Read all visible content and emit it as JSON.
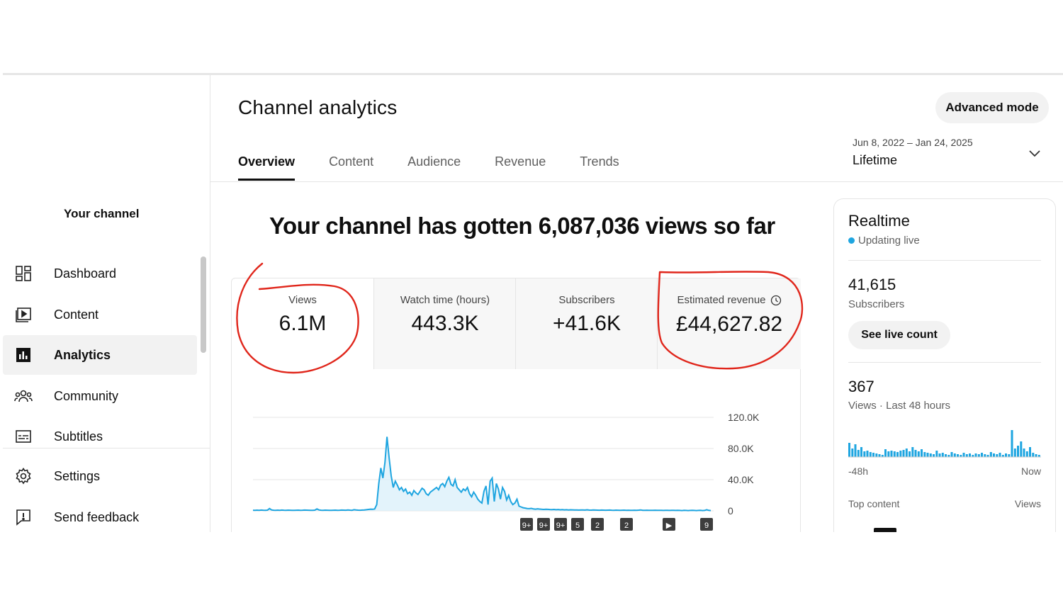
{
  "sidebar": {
    "channel_label": "Your channel",
    "items": [
      {
        "label": "Dashboard",
        "icon": "dashboard-icon"
      },
      {
        "label": "Content",
        "icon": "content-icon"
      },
      {
        "label": "Analytics",
        "icon": "analytics-icon",
        "active": true
      },
      {
        "label": "Community",
        "icon": "community-icon"
      },
      {
        "label": "Subtitles",
        "icon": "subtitles-icon"
      },
      {
        "label": "Settings",
        "icon": "settings-icon"
      },
      {
        "label": "Send feedback",
        "icon": "feedback-icon"
      }
    ]
  },
  "header": {
    "title": "Channel analytics",
    "advanced_mode": "Advanced mode",
    "tabs": [
      {
        "label": "Overview",
        "active": true
      },
      {
        "label": "Content"
      },
      {
        "label": "Audience"
      },
      {
        "label": "Revenue"
      },
      {
        "label": "Trends"
      }
    ],
    "date_range": "Jun 8, 2022 – Jan 24, 2025",
    "date_label": "Lifetime"
  },
  "headline": "Your channel has gotten 6,087,036 views so far",
  "metrics": [
    {
      "label": "Views",
      "value": "6.1M"
    },
    {
      "label": "Watch time (hours)",
      "value": "443.3K"
    },
    {
      "label": "Subscribers",
      "value": "+41.6K"
    },
    {
      "label": "Estimated revenue",
      "value": "£44,627.82"
    }
  ],
  "chart_data": {
    "type": "line",
    "title": "",
    "xlabel": "",
    "ylabel": "",
    "yticks": [
      "0",
      "40.0K",
      "80.0K",
      "120.0K"
    ],
    "ylim": [
      0,
      120000
    ],
    "color": "#1ea5e0",
    "series": [
      {
        "values": [
          800,
          600,
          900,
          700,
          1000,
          800,
          700,
          900,
          3000,
          1200,
          800,
          700,
          900,
          600,
          1000,
          800,
          700,
          900,
          800,
          700,
          600,
          800,
          900,
          700,
          800,
          1000,
          900,
          800,
          700,
          600,
          900,
          2500,
          1200,
          800,
          700,
          900,
          800,
          700,
          600,
          800,
          900,
          700,
          800,
          1000,
          900,
          800,
          1200,
          900,
          700,
          1500,
          1100,
          900,
          800,
          1000,
          1200,
          1500,
          1800,
          2200,
          2000,
          2500,
          8000,
          35000,
          55000,
          42000,
          62000,
          95000,
          68000,
          45000,
          30000,
          38000,
          33000,
          27000,
          30000,
          25000,
          28000,
          22000,
          24000,
          20000,
          26000,
          23000,
          21000,
          25000,
          29000,
          27000,
          22000,
          20000,
          24000,
          26000,
          28000,
          30000,
          27000,
          33000,
          35000,
          31000,
          38000,
          43000,
          34000,
          32000,
          40000,
          30000,
          27000,
          24000,
          28000,
          26000,
          30000,
          22000,
          18000,
          24000,
          20000,
          15000,
          12000,
          10000,
          25000,
          32000,
          8000,
          38000,
          42000,
          12000,
          35000,
          28000,
          15000,
          30000,
          25000,
          14000,
          20000,
          12000,
          8000,
          10000,
          15000,
          6000,
          5000,
          4000,
          3500,
          3000,
          2800,
          3200,
          2500,
          2200,
          2600,
          2300,
          2000,
          1800,
          2100,
          1900,
          1700,
          1600,
          1800,
          1500,
          1700,
          1400,
          1600,
          1300,
          1500,
          1200,
          1400,
          1300,
          1200,
          1100,
          1000,
          1200,
          1100,
          1000,
          1400,
          1000,
          900,
          1100,
          1000,
          900,
          800,
          1000,
          900,
          800,
          900,
          1000,
          800,
          700,
          900,
          800,
          700,
          800,
          900,
          700,
          800,
          700,
          600,
          800,
          700,
          900,
          1200,
          700,
          600,
          800,
          700,
          600,
          700,
          800,
          600,
          700,
          600,
          500,
          700,
          600,
          500,
          600,
          700,
          500,
          600,
          500,
          400,
          600,
          500,
          400,
          500,
          600,
          500,
          400,
          500,
          600,
          400,
          500,
          1500,
          600,
          400
        ]
      }
    ],
    "markers": [
      "9+",
      "9+",
      "9+",
      "5",
      "2",
      "2",
      "▶",
      "9"
    ]
  },
  "realtime": {
    "title": "Realtime",
    "status": "Updating live",
    "subscribers_value": "41,615",
    "subscribers_label": "Subscribers",
    "see_live_count": "See live count",
    "views_value": "367",
    "views_label": "Views · Last 48 hours",
    "axis_left": "-48h",
    "axis_right": "Now",
    "top_content": "Top content",
    "top_content_col": "Views",
    "bars": [
      20,
      12,
      18,
      10,
      14,
      8,
      9,
      7,
      6,
      5,
      4,
      3,
      11,
      8,
      9,
      8,
      7,
      9,
      10,
      12,
      8,
      14,
      10,
      8,
      11,
      7,
      6,
      5,
      4,
      9,
      5,
      6,
      4,
      3,
      7,
      5,
      4,
      3,
      6,
      4,
      5,
      3,
      5,
      4,
      6,
      4,
      3,
      7,
      5,
      4,
      6,
      3,
      5,
      4,
      38,
      12,
      16,
      22,
      12,
      8,
      14,
      6,
      4,
      3
    ],
    "bars_color": "#1ea5e0"
  },
  "annotation_color": "#e0261b"
}
